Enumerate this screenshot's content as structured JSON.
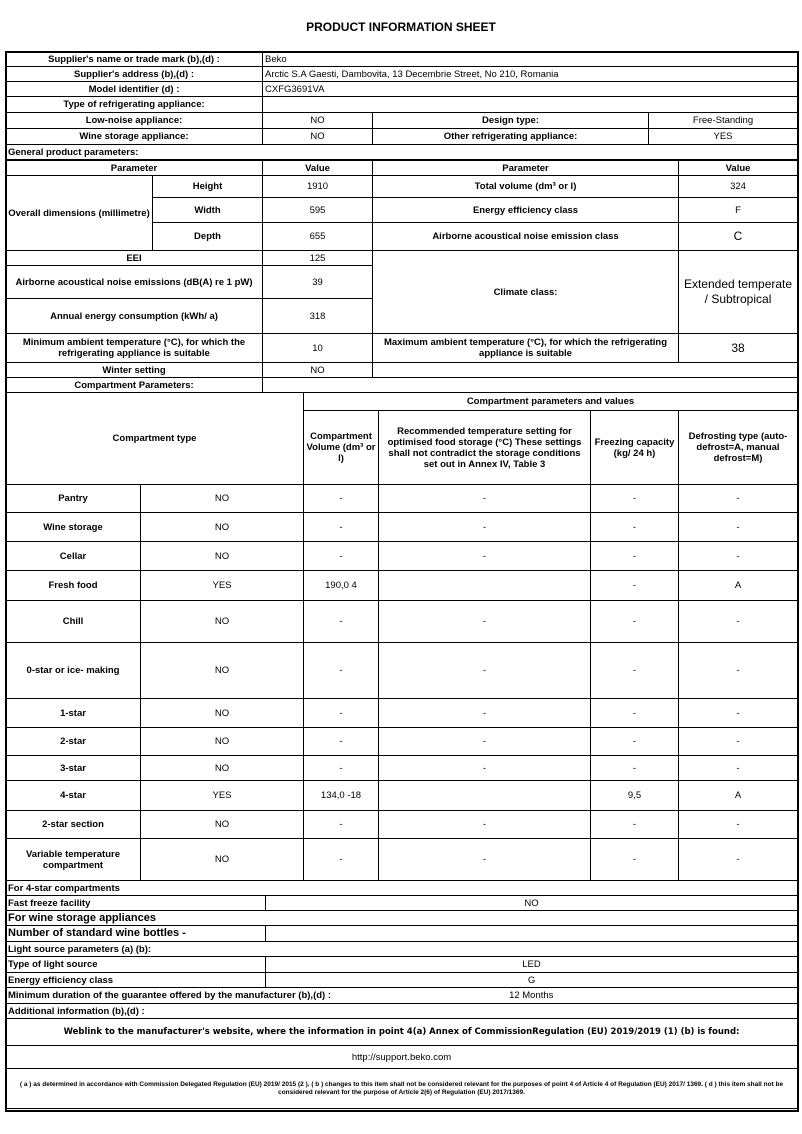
{
  "title": "PRODUCT INFORMATION SHEET",
  "supplier": {
    "name_label": "Supplier's name or trade mark (b),(d) :",
    "name": "Beko",
    "address_label": "Supplier's address (b),(d) :",
    "address": "Arctic S.A  Gaesti, Dambovita, 13 Decembrie Street, No 210, Romania",
    "model_label": "Model identifier (d) :",
    "model": "CXFG3691VA",
    "type_label": "Type of refrigerating appliance:"
  },
  "appliance": {
    "low_noise_label": "Low-noise appliance:",
    "low_noise": "NO",
    "design_label": "Design type:",
    "design": "Free-Standing",
    "wine_label": "Wine storage appliance:",
    "wine": "NO",
    "other_label": "Other refrigerating appliance:",
    "other": "YES"
  },
  "general": {
    "section": "General product parameters:",
    "param_h": "Parameter",
    "value_h": "Value",
    "dims_label": "Overall dimensions (millimetre)",
    "height_label": "Height",
    "height": "1910",
    "width_label": "Width",
    "width": "595",
    "depth_label": "Depth",
    "depth": "655",
    "total_vol_label": "Total volume (dm³ or l)",
    "total_vol": "324",
    "eec_label": "Energy efficiency class",
    "eec": "F",
    "noise_class_label": "Airborne acoustical noise emission class",
    "noise_class": "C",
    "eei_label": "EEI",
    "eei": "125",
    "noise_label": "Airborne acoustical noise emissions (dB(A) re 1 pW)",
    "noise": "39",
    "annual_label": "Annual energy consumption (kWh/ a)",
    "annual": "318",
    "climate_label": "Climate class:",
    "climate": "Extended temperate / Subtropical",
    "min_amb_label": "Minimum ambient temperature (°C), for which the refrigerating appliance is suitable",
    "min_amb": "10",
    "max_amb_label": "Maximum ambient temperature (°C), for which the refrigerating appliance is suitable",
    "max_amb": "38",
    "winter_label": "Winter setting",
    "winter": "NO"
  },
  "compartments": {
    "section": "Compartment Parameters:",
    "type_h": "Compartment type",
    "values_h": "Compartment parameters and values",
    "vol_h": "Compartment Volume (dm³ or l)",
    "temp_h": "Recommended temperature setting for optimised food storage (°C) These settings shall not contradict the storage conditions set out in Annex IV, Table 3",
    "freeze_h": "Freezing capacity (kg/ 24 h)",
    "defrost_h": "Defrosting type (auto-defrost=A, manual defrost=M)",
    "rows": [
      {
        "name": "Pantry",
        "present": "NO",
        "vol": "-",
        "temp": "-",
        "freeze": "-",
        "defrost": "-"
      },
      {
        "name": "Wine storage",
        "present": "NO",
        "vol": "-",
        "temp": "-",
        "freeze": "-",
        "defrost": "-"
      },
      {
        "name": "Cellar",
        "present": "NO",
        "vol": "-",
        "temp": "-",
        "freeze": "-",
        "defrost": "-"
      },
      {
        "name": "Fresh food",
        "present": "YES",
        "vol": "190,0 4",
        "temp": "",
        "freeze": "-",
        "defrost": "A"
      },
      {
        "name": "Chill",
        "present": "NO",
        "vol": "-",
        "temp": "-",
        "freeze": "-",
        "defrost": "-"
      },
      {
        "name": "0-star or ice- making",
        "present": "NO",
        "vol": "-",
        "temp": "-",
        "freeze": "-",
        "defrost": "-"
      },
      {
        "name": "1-star",
        "present": "NO",
        "vol": "-",
        "temp": "-",
        "freeze": "-",
        "defrost": "-"
      },
      {
        "name": "2-star",
        "present": "NO",
        "vol": "-",
        "temp": "-",
        "freeze": "-",
        "defrost": "-"
      },
      {
        "name": "3-star",
        "present": "NO",
        "vol": "-",
        "temp": "-",
        "freeze": "-",
        "defrost": "-"
      },
      {
        "name": "4-star",
        "present": "YES",
        "vol": "134,0 -18",
        "temp": "",
        "freeze": "9,5",
        "defrost": "A"
      },
      {
        "name": "2-star section",
        "present": "NO",
        "vol": "-",
        "temp": "-",
        "freeze": "-",
        "defrost": "-"
      },
      {
        "name": "Variable temperature compartment",
        "present": "NO",
        "vol": "-",
        "temp": "-",
        "freeze": "-",
        "defrost": "-"
      }
    ]
  },
  "bottom": {
    "four_star": "For 4-star compartments",
    "fast_freeze_label": "Fast freeze facility",
    "fast_freeze": "NO",
    "wine_section": "For wine storage appliances",
    "bottles_label": "Number of standard wine bottles -",
    "light_section": "Light source parameters (a) (b):",
    "light_type_label": "Type of light source",
    "light_type": "LED",
    "light_eec_label": "Energy efficiency class",
    "light_eec": "G",
    "guarantee_label": "Minimum duration of the guarantee offered by the manufacturer (b),(d) :",
    "guarantee": "12 Months",
    "additional_label": "Additional information (b),(d) :",
    "weblink_label": "Weblink to the manufacturer's website, where the information in point 4(a) Annex of CommissionRegulation (EU) 2019/2019 (1) (b) is found:",
    "weblink": "http://support.beko.com",
    "footnote": "( a ) as determined in accordance with Commission Delegated Regulation (EU) 2019/ 2015 (2 ). ( b ) changes to this item shall not be considered relevant for the purposes of point 4 of Article 4 of Regulation (EU) 2017/ 1369. ( d ) this item shall not be considered relevant for the purpose of Article 2(6) of Regulation (EU) 2017/1369."
  }
}
